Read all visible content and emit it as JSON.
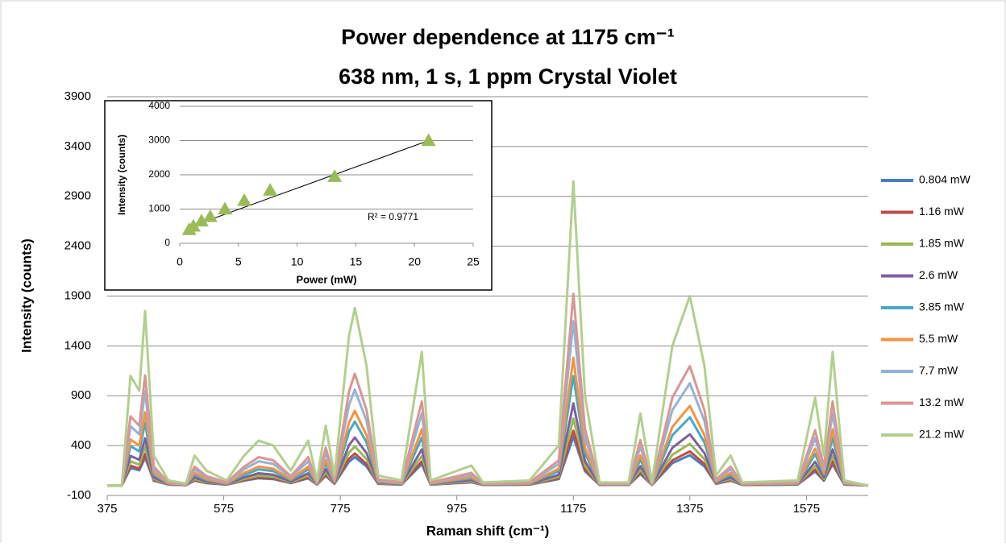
{
  "chart_data": [
    {
      "type": "line",
      "title": "Power dependence at 1175 cm⁻¹",
      "subtitle": "638 nm, 1 s, 1 ppm Crystal Violet",
      "x_label": "Raman shift (cm⁻¹)",
      "y_label": "Intensity (counts)",
      "xlim": [
        375,
        1681
      ],
      "xticks": [
        375,
        575,
        775,
        975,
        1175,
        1375,
        1575
      ],
      "ylim": [
        -100,
        3900
      ],
      "yticks": [
        -100,
        400,
        900,
        1400,
        1900,
        2400,
        2900,
        3400,
        3900
      ],
      "grid": true,
      "legend": "right",
      "x": [
        375,
        400,
        415,
        430,
        440,
        455,
        480,
        510,
        525,
        545,
        580,
        610,
        635,
        660,
        690,
        720,
        735,
        750,
        765,
        790,
        800,
        820,
        840,
        880,
        915,
        930,
        1000,
        1020,
        1100,
        1150,
        1175,
        1195,
        1220,
        1270,
        1290,
        1310,
        1345,
        1375,
        1400,
        1420,
        1445,
        1465,
        1560,
        1590,
        1605,
        1620,
        1640,
        1681
      ],
      "series": [
        {
          "name": "0.804 mW",
          "color": "#4a7ebb",
          "values": [
            0,
            0,
            176,
            152,
            280,
            48,
            8,
            3,
            48,
            24,
            8,
            48,
            72,
            64,
            24,
            72,
            8,
            96,
            16,
            240,
            285,
            192,
            16,
            8,
            214,
            8,
            32,
            5,
            8,
            64,
            488,
            144,
            5,
            5,
            115,
            5,
            224,
            304,
            192,
            16,
            48,
            5,
            8,
            141,
            48,
            214,
            8,
            0
          ]
        },
        {
          "name": "1.16 mW",
          "color": "#be4b48",
          "values": [
            0,
            0,
            198,
            171,
            315,
            54,
            9,
            4,
            54,
            27,
            9,
            54,
            81,
            72,
            27,
            81,
            9,
            108,
            18,
            270,
            320,
            216,
            18,
            9,
            241,
            9,
            36,
            5,
            9,
            72,
            549,
            162,
            5,
            5,
            130,
            5,
            252,
            342,
            216,
            18,
            54,
            5,
            9,
            158,
            54,
            241,
            9,
            0
          ]
        },
        {
          "name": "1.85 mW",
          "color": "#98b954",
          "values": [
            0,
            0,
            242,
            209,
            385,
            66,
            11,
            4,
            66,
            33,
            11,
            66,
            99,
            88,
            33,
            99,
            11,
            132,
            22,
            330,
            392,
            264,
            22,
            11,
            295,
            11,
            44,
            7,
            11,
            88,
            671,
            198,
            7,
            7,
            158,
            7,
            308,
            418,
            264,
            22,
            66,
            7,
            11,
            194,
            66,
            295,
            11,
            0
          ]
        },
        {
          "name": "2.6 mW",
          "color": "#7d60a0",
          "values": [
            0,
            0,
            297,
            257,
            473,
            81,
            14,
            5,
            81,
            41,
            14,
            81,
            122,
            108,
            41,
            122,
            14,
            162,
            27,
            405,
            481,
            324,
            27,
            14,
            362,
            14,
            54,
            8,
            14,
            108,
            824,
            243,
            8,
            8,
            194,
            8,
            378,
            513,
            324,
            27,
            81,
            8,
            14,
            238,
            81,
            362,
            14,
            0
          ]
        },
        {
          "name": "3.85 mW",
          "color": "#46aac5",
          "values": [
            0,
            0,
            396,
            342,
            630,
            108,
            18,
            7,
            108,
            54,
            18,
            108,
            162,
            144,
            54,
            162,
            18,
            216,
            36,
            540,
            641,
            432,
            36,
            18,
            482,
            18,
            72,
            11,
            18,
            144,
            1098,
            324,
            11,
            11,
            259,
            11,
            504,
            684,
            432,
            36,
            108,
            11,
            18,
            317,
            108,
            482,
            18,
            0
          ]
        },
        {
          "name": "5.5 mW",
          "color": "#f69240",
          "values": [
            0,
            0,
            462,
            399,
            735,
            126,
            21,
            8,
            126,
            63,
            21,
            126,
            189,
            168,
            63,
            189,
            21,
            252,
            42,
            630,
            748,
            504,
            42,
            21,
            563,
            21,
            84,
            13,
            21,
            168,
            1281,
            378,
            13,
            13,
            302,
            13,
            588,
            798,
            504,
            42,
            126,
            13,
            21,
            370,
            126,
            563,
            21,
            0
          ]
        },
        {
          "name": "7.7 mW",
          "color": "#95b3d7",
          "values": [
            0,
            0,
            594,
            513,
            945,
            162,
            27,
            11,
            162,
            81,
            27,
            162,
            243,
            216,
            81,
            243,
            27,
            324,
            54,
            810,
            961,
            648,
            54,
            27,
            724,
            27,
            108,
            16,
            27,
            216,
            1647,
            486,
            16,
            16,
            389,
            16,
            756,
            1026,
            648,
            54,
            162,
            16,
            27,
            475,
            162,
            724,
            27,
            0
          ]
        },
        {
          "name": "13.2 mW",
          "color": "#d99694",
          "values": [
            0,
            0,
            693,
            599,
            1103,
            189,
            32,
            13,
            189,
            95,
            32,
            189,
            284,
            252,
            95,
            284,
            32,
            378,
            63,
            945,
            1121,
            756,
            63,
            32,
            844,
            32,
            126,
            19,
            32,
            252,
            1922,
            567,
            19,
            19,
            454,
            19,
            882,
            1197,
            756,
            63,
            189,
            19,
            32,
            554,
            189,
            844,
            32,
            0
          ]
        },
        {
          "name": "21.2 mW",
          "color": "#b3cf8e",
          "values": [
            0,
            0,
            1100,
            950,
            1750,
            300,
            50,
            20,
            300,
            150,
            50,
            300,
            450,
            400,
            150,
            450,
            50,
            600,
            100,
            1500,
            1780,
            1200,
            100,
            50,
            1340,
            50,
            200,
            30,
            50,
            400,
            3050,
            900,
            30,
            30,
            720,
            30,
            1400,
            1900,
            1200,
            100,
            300,
            30,
            50,
            880,
            300,
            1340,
            50,
            0
          ]
        }
      ]
    },
    {
      "type": "scatter",
      "x_label": "Power (mW)",
      "y_label": "Intensity (counts)",
      "annotation": "R² = 0.9771",
      "xlim": [
        0,
        25
      ],
      "xticks": [
        0,
        5,
        10,
        15,
        20,
        25
      ],
      "ylim": [
        0,
        4000
      ],
      "yticks": [
        0,
        1000,
        2000,
        3000,
        4000
      ],
      "grid": true,
      "color": "#9bbb59",
      "x": [
        0.804,
        1.16,
        1.85,
        2.6,
        3.85,
        5.5,
        7.7,
        13.2,
        21.2
      ],
      "values": [
        400,
        500,
        650,
        780,
        1000,
        1250,
        1550,
        1950,
        3000
      ],
      "trendline": {
        "x": [
          0.804,
          21.2
        ],
        "values": [
          470,
          3000
        ],
        "color": "#000000"
      }
    }
  ]
}
